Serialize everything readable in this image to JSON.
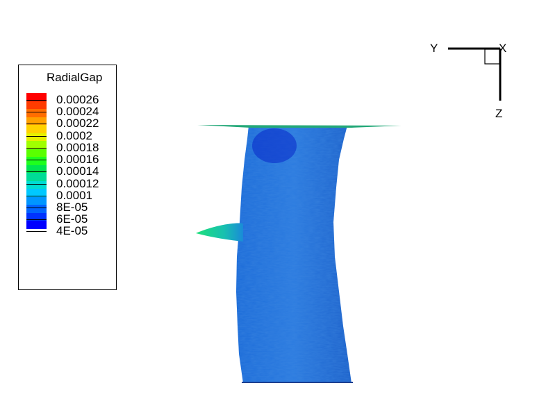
{
  "legend": {
    "title": "RadialGap",
    "ticks": [
      "0.00026",
      "0.00024",
      "0.00022",
      "0.0002",
      "0.00018",
      "0.00016",
      "0.00014",
      "0.00012",
      "0.0001",
      "8E-05",
      "6E-05",
      "4E-05"
    ],
    "colors": [
      "#ff0000",
      "#ff3c00",
      "#ff6e00",
      "#ffa000",
      "#ffd200",
      "#e6f000",
      "#a0ff00",
      "#5aff00",
      "#1eff1e",
      "#00e650",
      "#00dc96",
      "#00dcd2",
      "#00c8ff",
      "#0096ff",
      "#0064ff",
      "#0032ff",
      "#0000ff"
    ]
  },
  "axes": {
    "y_label": "Y",
    "x_label": "X",
    "z_label": "Z"
  },
  "chart_data": {
    "type": "heatmap",
    "title": "",
    "colorbar_title": "RadialGap",
    "colorbar_range": [
      4e-05,
      0.00026
    ],
    "colorbar_ticks": [
      0.00026,
      0.00024,
      0.00022,
      0.0002,
      0.00018,
      0.00016,
      0.00014,
      0.00012,
      0.0001,
      8e-05,
      6e-05,
      4e-05
    ],
    "axes_orientation": [
      "Y",
      "X",
      "Z"
    ]
  }
}
